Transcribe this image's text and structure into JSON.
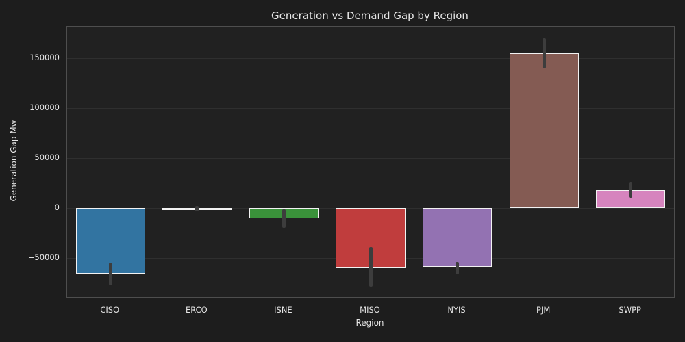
{
  "chart_data": {
    "type": "bar",
    "title": "Generation vs Demand Gap by Region",
    "xlabel": "Region",
    "ylabel": "Generation Gap Mw",
    "categories": [
      "CISO",
      "ERCO",
      "ISNE",
      "MISO",
      "NYIS",
      "PJM",
      "SWPP"
    ],
    "values": [
      -66000,
      -1500,
      -10000,
      -60000,
      -59000,
      155000,
      18000
    ],
    "error_low": [
      -77500,
      -3500,
      -19500,
      -79000,
      -66500,
      140000,
      10000
    ],
    "error_high": [
      -55000,
      2000,
      -1000,
      -39000,
      -54000,
      170000,
      26000
    ],
    "bar_colors": [
      "#3274A1",
      "#E1812C",
      "#3A923A",
      "#C03D3D",
      "#9372B2",
      "#845B53",
      "#D684BE"
    ],
    "yticks": [
      150000,
      100000,
      50000,
      0,
      -50000
    ],
    "ylim": [
      -89000,
      181600
    ],
    "grid": true,
    "legend": "none",
    "bar_width_fraction": 0.8
  },
  "theme": {
    "figure_background": "#1d1d1d",
    "plot_background": "#212121",
    "grid_color": "#2f2f2f",
    "spine_color": "#4e4e4e",
    "text_color": "#e6e6e6",
    "bar_edge_color": "#f2f2f2",
    "error_bar_color": "#3d3d3d"
  }
}
